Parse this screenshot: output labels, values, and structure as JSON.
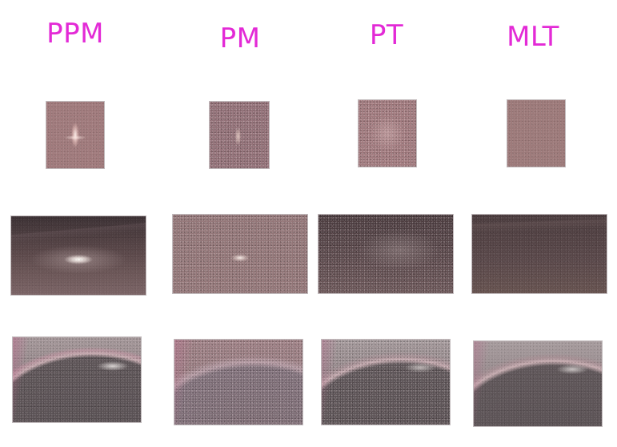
{
  "columns": [
    {
      "id": "ppm",
      "label": "PPM"
    },
    {
      "id": "pm",
      "label": "PM"
    },
    {
      "id": "pt",
      "label": "PT"
    },
    {
      "id": "mlt",
      "label": "MLT"
    }
  ],
  "colors": {
    "label": "#e32ad6",
    "background": "#ffffff"
  }
}
